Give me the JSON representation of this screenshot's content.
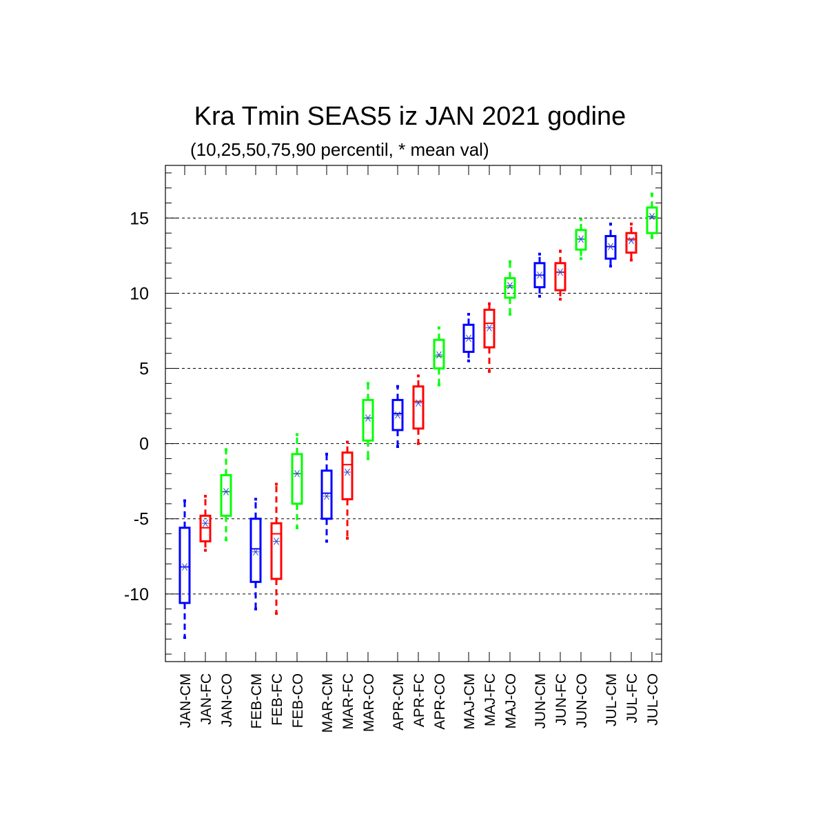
{
  "chart_data": {
    "type": "boxplot",
    "title": "Kra Tmin SEAS5 iz JAN 2021 godine",
    "subtitle": "(10,25,50,75,90 percentil, * mean val)",
    "ylim": [
      -14.5,
      18.5
    ],
    "yticks": [
      -10,
      -5,
      0,
      5,
      10,
      15
    ],
    "grid": "dashed horizontal at major ticks",
    "colors": {
      "CM": "#0000ff",
      "FC": "#ff0000",
      "CO": "#00ff00",
      "mean": "#3344cc"
    },
    "boxes": [
      {
        "label": "JAN-CM",
        "kind": "CM",
        "p10": -12.9,
        "p25": -10.6,
        "p50": -8.2,
        "p75": -5.6,
        "p90": -3.8,
        "mean": -8.2
      },
      {
        "label": "JAN-FC",
        "kind": "FC",
        "p10": -7.1,
        "p25": -6.5,
        "p50": -5.6,
        "p75": -4.8,
        "p90": -3.5,
        "mean": -5.3
      },
      {
        "label": "JAN-CO",
        "kind": "CO",
        "p10": -6.4,
        "p25": -4.8,
        "p50": -3.2,
        "p75": -2.1,
        "p90": -0.4,
        "mean": -3.2
      },
      {
        "label": "FEB-CM",
        "kind": "CM",
        "p10": -11.0,
        "p25": -9.2,
        "p50": -7.0,
        "p75": -5.0,
        "p90": -3.7,
        "mean": -7.2
      },
      {
        "label": "FEB-FC",
        "kind": "FC",
        "p10": -11.3,
        "p25": -9.0,
        "p50": -6.0,
        "p75": -5.3,
        "p90": -2.7,
        "mean": -6.5
      },
      {
        "label": "FEB-CO",
        "kind": "CO",
        "p10": -5.6,
        "p25": -4.0,
        "p50": -2.0,
        "p75": -0.7,
        "p90": 0.6,
        "mean": -2.0
      },
      {
        "label": "MAR-CM",
        "kind": "CM",
        "p10": -6.5,
        "p25": -5.0,
        "p50": -3.3,
        "p75": -1.8,
        "p90": -0.7,
        "mean": -3.5
      },
      {
        "label": "MAR-FC",
        "kind": "FC",
        "p10": -6.3,
        "p25": -3.7,
        "p50": -1.4,
        "p75": -0.6,
        "p90": 0.1,
        "mean": -1.9
      },
      {
        "label": "MAR-CO",
        "kind": "CO",
        "p10": -1.0,
        "p25": 0.2,
        "p50": 1.7,
        "p75": 2.9,
        "p90": 4.0,
        "mean": 1.7
      },
      {
        "label": "APR-CM",
        "kind": "CM",
        "p10": -0.2,
        "p25": 0.9,
        "p50": 2.0,
        "p75": 2.9,
        "p90": 3.8,
        "mean": 1.9
      },
      {
        "label": "APR-FC",
        "kind": "FC",
        "p10": 0.0,
        "p25": 1.0,
        "p50": 2.8,
        "p75": 3.8,
        "p90": 4.5,
        "mean": 2.7
      },
      {
        "label": "APR-CO",
        "kind": "CO",
        "p10": 3.9,
        "p25": 5.0,
        "p50": 5.8,
        "p75": 6.9,
        "p90": 7.7,
        "mean": 5.9
      },
      {
        "label": "MAJ-CM",
        "kind": "CM",
        "p10": 5.5,
        "p25": 6.1,
        "p50": 7.0,
        "p75": 7.9,
        "p90": 8.6,
        "mean": 7.0
      },
      {
        "label": "MAJ-FC",
        "kind": "FC",
        "p10": 4.8,
        "p25": 6.4,
        "p50": 8.0,
        "p75": 8.9,
        "p90": 9.3,
        "mean": 7.7
      },
      {
        "label": "MAJ-CO",
        "kind": "CO",
        "p10": 8.6,
        "p25": 9.7,
        "p50": 10.4,
        "p75": 11.0,
        "p90": 12.1,
        "mean": 10.5
      },
      {
        "label": "JUN-CM",
        "kind": "CM",
        "p10": 9.8,
        "p25": 10.4,
        "p50": 11.2,
        "p75": 12.0,
        "p90": 12.6,
        "mean": 11.2
      },
      {
        "label": "JUN-FC",
        "kind": "FC",
        "p10": 9.6,
        "p25": 10.2,
        "p50": 11.4,
        "p75": 12.0,
        "p90": 12.8,
        "mean": 11.4
      },
      {
        "label": "JUN-CO",
        "kind": "CO",
        "p10": 12.3,
        "p25": 12.9,
        "p50": 13.6,
        "p75": 14.2,
        "p90": 14.9,
        "mean": 13.6
      },
      {
        "label": "JUL-CM",
        "kind": "CM",
        "p10": 11.8,
        "p25": 12.3,
        "p50": 13.1,
        "p75": 13.8,
        "p90": 14.6,
        "mean": 13.1
      },
      {
        "label": "JUL-FC",
        "kind": "FC",
        "p10": 12.2,
        "p25": 12.7,
        "p50": 13.6,
        "p75": 14.0,
        "p90": 14.6,
        "mean": 13.5
      },
      {
        "label": "JUL-CO",
        "kind": "CO",
        "p10": 13.7,
        "p25": 14.0,
        "p50": 15.1,
        "p75": 15.7,
        "p90": 16.6,
        "mean": 15.1
      }
    ]
  }
}
